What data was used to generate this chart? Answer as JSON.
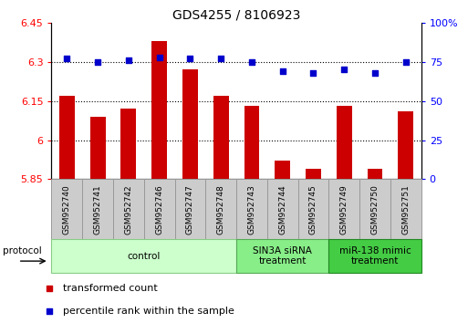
{
  "title": "GDS4255 / 8106923",
  "samples": [
    "GSM952740",
    "GSM952741",
    "GSM952742",
    "GSM952746",
    "GSM952747",
    "GSM952748",
    "GSM952743",
    "GSM952744",
    "GSM952745",
    "GSM952749",
    "GSM952750",
    "GSM952751"
  ],
  "bar_values": [
    6.17,
    6.09,
    6.12,
    6.38,
    6.27,
    6.17,
    6.13,
    5.92,
    5.89,
    6.13,
    5.89,
    6.11
  ],
  "dot_values": [
    77,
    75,
    76,
    78,
    77,
    77,
    75,
    69,
    68,
    70,
    68,
    75
  ],
  "bar_color": "#cc0000",
  "dot_color": "#0000cc",
  "ylim_left": [
    5.85,
    6.45
  ],
  "ylim_right": [
    0,
    100
  ],
  "yticks_left": [
    5.85,
    6.0,
    6.15,
    6.3,
    6.45
  ],
  "yticks_right": [
    0,
    25,
    50,
    75,
    100
  ],
  "ytick_labels_left": [
    "5.85",
    "6",
    "6.15",
    "6.3",
    "6.45"
  ],
  "ytick_labels_right": [
    "0",
    "25",
    "50",
    "75",
    "100%"
  ],
  "groups": [
    {
      "label": "control",
      "start": 0,
      "end": 6,
      "color": "#ccffcc",
      "border": "#88cc88"
    },
    {
      "label": "SIN3A siRNA\ntreatment",
      "start": 6,
      "end": 9,
      "color": "#88ee88",
      "border": "#55aa55"
    },
    {
      "label": "miR-138 mimic\ntreatment",
      "start": 9,
      "end": 12,
      "color": "#44cc44",
      "border": "#228822"
    }
  ],
  "protocol_label": "protocol",
  "legend_items": [
    {
      "color": "#cc0000",
      "label": "transformed count"
    },
    {
      "color": "#0000cc",
      "label": "percentile rank within the sample"
    }
  ],
  "hline_values": [
    6.0,
    6.15,
    6.3
  ],
  "base_value": 5.85,
  "sample_cell_color": "#cccccc",
  "sample_cell_border": "#999999"
}
